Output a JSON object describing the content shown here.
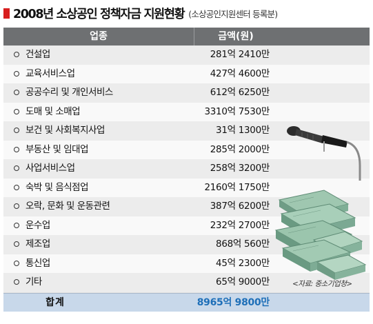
{
  "title": {
    "main": "2008년 소상공인 정책자금 지원현황",
    "sub": "(소상공인지원센터 등록분)"
  },
  "table": {
    "headers": [
      "업종",
      "금액(원)"
    ],
    "rows": [
      {
        "category": "건설업",
        "amount": "281억 2410만"
      },
      {
        "category": "교육서비스업",
        "amount": "427억 4600만"
      },
      {
        "category": "공공수리 및 개인서비스",
        "amount": "612억 6250만"
      },
      {
        "category": "도매 및 소매업",
        "amount": "3310억 7530만"
      },
      {
        "category": "보건 및 사회복지사업",
        "amount": "31억 1300만"
      },
      {
        "category": "부동산 및 임대업",
        "amount": "285억 2000만"
      },
      {
        "category": "사업서비스업",
        "amount": "258억 3200만"
      },
      {
        "category": "숙박 및 음식점업",
        "amount": "2160억 1750만"
      },
      {
        "category": "오락, 문화 및 운동관련",
        "amount": "387억 6200만"
      },
      {
        "category": "운수업",
        "amount": "232억 2700만"
      },
      {
        "category": "제조업",
        "amount": "868억 560만"
      },
      {
        "category": "통신업",
        "amount": "45억 2300만"
      },
      {
        "category": "기타",
        "amount": "65억 9000만"
      }
    ],
    "total": {
      "label": "합계",
      "amount": "8965억 9800만"
    }
  },
  "source": "<자료: 중소기업청>",
  "illustration": {
    "icons": [
      "microphone-icon",
      "money-stack-icon"
    ]
  },
  "colors": {
    "header_bg": "#6e7072",
    "total_bg": "#c8d8ea",
    "total_value": "#1e6fb8",
    "title_mark": "#d81e1e"
  }
}
